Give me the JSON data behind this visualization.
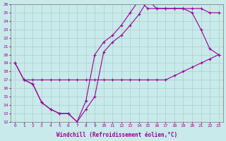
{
  "xlabel": "Windchill (Refroidissement éolien,°C)",
  "background_color": "#c8eaea",
  "grid_color": "#b0cccc",
  "line_color": "#990099",
  "xlim": [
    -0.5,
    23.5
  ],
  "ylim": [
    12,
    26
  ],
  "xticks": [
    0,
    1,
    2,
    3,
    4,
    5,
    6,
    7,
    8,
    9,
    10,
    11,
    12,
    13,
    14,
    15,
    16,
    17,
    18,
    19,
    20,
    21,
    22,
    23
  ],
  "yticks": [
    12,
    13,
    14,
    15,
    16,
    17,
    18,
    19,
    20,
    21,
    22,
    23,
    24,
    25,
    26
  ],
  "line1_x": [
    0,
    1,
    2,
    3,
    4,
    5,
    6,
    7,
    8,
    9,
    10,
    11,
    12,
    13,
    14,
    15,
    16,
    17,
    18,
    19,
    20,
    21,
    22,
    23
  ],
  "line1_y": [
    19,
    17,
    17,
    17,
    17,
    17,
    17,
    17,
    17,
    17,
    17,
    17,
    17,
    17,
    17,
    17,
    17,
    17,
    17.5,
    18,
    18.5,
    19,
    19.5,
    20
  ],
  "line2_x": [
    0,
    1,
    2,
    3,
    4,
    5,
    6,
    7,
    8,
    9,
    10,
    11,
    12,
    13,
    14,
    15,
    16,
    17,
    18,
    19,
    20,
    21,
    22,
    23
  ],
  "line2_y": [
    19,
    17,
    16.5,
    14.3,
    13.5,
    13,
    13,
    12,
    13.5,
    15,
    20.3,
    21.5,
    22.3,
    23.5,
    24.8,
    26.5,
    25.5,
    25.5,
    25.5,
    25.5,
    25.0,
    23.0,
    20.7,
    20.0
  ],
  "line3_x": [
    1,
    2,
    3,
    4,
    5,
    6,
    7,
    8,
    9,
    10,
    11,
    12,
    13,
    14,
    15,
    16,
    17,
    18,
    19,
    20,
    21,
    22,
    23
  ],
  "line3_y": [
    17,
    16.5,
    14.3,
    13.5,
    13,
    13,
    12,
    14.5,
    20,
    21.5,
    22.3,
    23.5,
    25.0,
    26.5,
    25.5,
    25.5,
    25.5,
    25.5,
    25.5,
    25.5,
    25.5,
    25.0,
    25.0
  ]
}
